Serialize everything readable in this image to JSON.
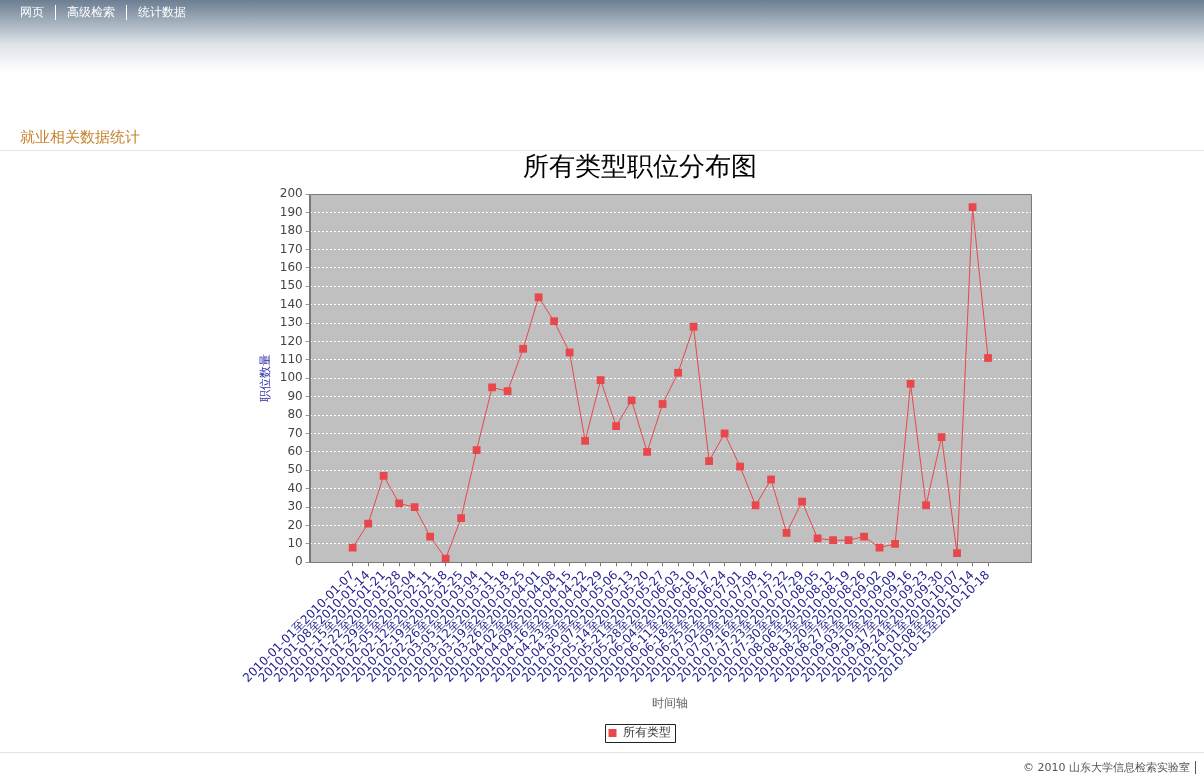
{
  "chart_data": {
    "type": "line",
    "title": "所有类型职位分布图",
    "xlabel": "时间轴",
    "ylabel": "职位数量",
    "categories": [
      "2010-01-01至2010-01-07",
      "2010-01-08至2010-01-14",
      "2010-01-15至2010-01-21",
      "2010-01-22至2010-01-28",
      "2010-01-29至2010-02-04",
      "2010-02-05至2010-02-11",
      "2010-02-12至2010-02-18",
      "2010-02-19至2010-02-25",
      "2010-02-26至2010-03-04",
      "2010-03-05至2010-03-11",
      "2010-03-12至2010-03-18",
      "2010-03-19至2010-03-25",
      "2010-03-26至2010-04-01",
      "2010-04-02至2010-04-08",
      "2010-04-09至2010-04-15",
      "2010-04-16至2010-04-22",
      "2010-04-23至2010-04-29",
      "2010-04-30至2010-05-06",
      "2010-05-07至2010-05-13",
      "2010-05-14至2010-05-20",
      "2010-05-21至2010-05-27",
      "2010-05-28至2010-06-03",
      "2010-06-04至2010-06-10",
      "2010-06-11至2010-06-17",
      "2010-06-18至2010-06-24",
      "2010-06-25至2010-07-01",
      "2010-07-02至2010-07-08",
      "2010-07-09至2010-07-15",
      "2010-07-16至2010-07-22",
      "2010-07-23至2010-07-29",
      "2010-07-30至2010-08-05",
      "2010-08-06至2010-08-12",
      "2010-08-13至2010-08-19",
      "2010-08-20至2010-08-26",
      "2010-08-27至2010-09-02",
      "2010-09-03至2010-09-09",
      "2010-09-10至2010-09-16",
      "2010-09-17至2010-09-23",
      "2010-09-24至2010-09-30",
      "2010-10-01至2010-10-07",
      "2010-10-08至2010-10-14",
      "2010-10-15至2010-10-18"
    ],
    "series": [
      {
        "name": "所有类型",
        "color": "#e8474b",
        "values": [
          8,
          21,
          47,
          32,
          30,
          14,
          2,
          24,
          61,
          95,
          93,
          116,
          144,
          131,
          114,
          66,
          99,
          74,
          88,
          60,
          86,
          103,
          128,
          55,
          70,
          52,
          31,
          45,
          16,
          33,
          13,
          12,
          12,
          14,
          8,
          10,
          97,
          31,
          68,
          5,
          193,
          111
        ]
      }
    ],
    "ylim": [
      0,
      200
    ],
    "yticks": [
      0,
      10,
      20,
      30,
      40,
      50,
      60,
      70,
      80,
      90,
      100,
      110,
      120,
      130,
      140,
      150,
      160,
      170,
      180,
      190,
      200
    ],
    "grid": "y",
    "legend": "bottom",
    "marker": "square",
    "line_style": "solid",
    "annotations": [
      "网页",
      "高级检索",
      "统计数据",
      "就业相关数据统计",
      "© 2010 山东大学信息检索实验室"
    ]
  }
}
